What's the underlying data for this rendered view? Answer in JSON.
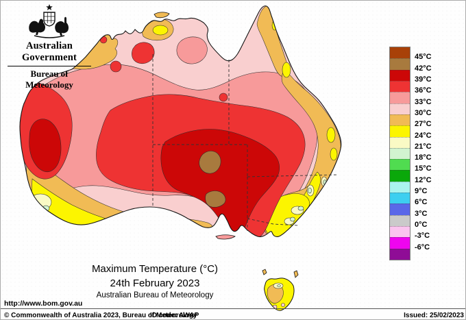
{
  "header": {
    "government": "Australian Government",
    "bureau": "Bureau of Meteorology"
  },
  "title": {
    "line1": "Maximum Temperature (°C)",
    "line2": "24th February 2023",
    "line3": "Australian Bureau of Meteorology"
  },
  "url": "http://www.bom.gov.au",
  "footer": {
    "copyright": "© Commonwealth of Australia 2023, Bureau of Meteorology",
    "id_code": "ID code: AWAP",
    "issued": "Issued: 25/02/2023"
  },
  "legend": {
    "labels": [
      "45°C",
      "42°C",
      "39°C",
      "36°C",
      "33°C",
      "30°C",
      "27°C",
      "24°C",
      "21°C",
      "18°C",
      "15°C",
      "12°C",
      "9°C",
      "6°C",
      "3°C",
      "0°C",
      "-3°C",
      "-6°C"
    ],
    "swatches": [
      {
        "range": "above 45",
        "color": "#A84108"
      },
      {
        "range": "42 to 45",
        "color": "#A87A3E"
      },
      {
        "range": "39 to 42",
        "color": "#CC0707"
      },
      {
        "range": "36 to 39",
        "color": "#EE3333"
      },
      {
        "range": "33 to 36",
        "color": "#F79A9A"
      },
      {
        "range": "30 to 33",
        "color": "#F9CFCF"
      },
      {
        "range": "27 to 30",
        "color": "#F1BB55"
      },
      {
        "range": "24 to 27",
        "color": "#FCF500"
      },
      {
        "range": "21 to 24",
        "color": "#FAFAC5"
      },
      {
        "range": "18 to 21",
        "color": "#D2F4D0"
      },
      {
        "range": "15 to 18",
        "color": "#50DC50"
      },
      {
        "range": "12 to 15",
        "color": "#0AA80A"
      },
      {
        "range": "9 to 12",
        "color": "#AAF4EE"
      },
      {
        "range": "6 to 9",
        "color": "#3DCFF0"
      },
      {
        "range": "3 to 6",
        "color": "#5A67E8"
      },
      {
        "range": "0 to 3",
        "color": "#CACACA"
      },
      {
        "range": "-3 to 0",
        "color": "#FBC4EF"
      },
      {
        "range": "-6 to -3",
        "color": "#EF05EF"
      },
      {
        "range": "below -6",
        "color": "#8F0C96"
      }
    ]
  },
  "map": {
    "region": "Australia",
    "zone_colors": {
      "z42": "#A87A3E",
      "z39": "#CC0707",
      "z36": "#EE3333",
      "z33": "#F79A9A",
      "z30": "#F9CFCF",
      "z27": "#F1BB55",
      "z24": "#FCF500",
      "z21": "#FAFAC5",
      "z18": "#D2F4D0"
    },
    "coastline_color": "#141414",
    "state_border_color": "#333333"
  }
}
